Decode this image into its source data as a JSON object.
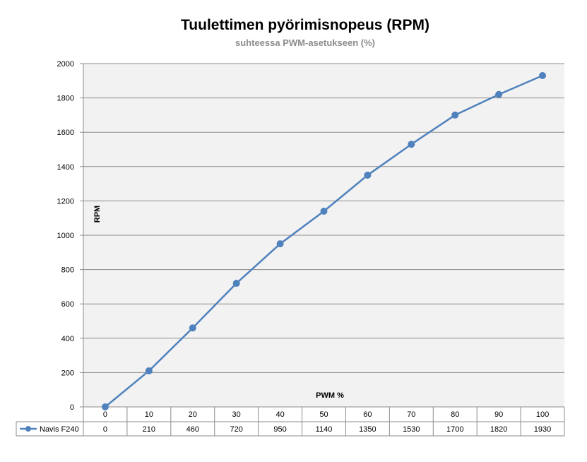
{
  "chart_data": {
    "type": "line",
    "title": "Tuulettimen pyörimisnopeus (RPM)",
    "subtitle": "suhteessa PWM-asetukseen (%)",
    "xlabel": "PWM %",
    "ylabel": "RPM",
    "categories": [
      "0",
      "10",
      "20",
      "30",
      "40",
      "50",
      "60",
      "70",
      "80",
      "90",
      "100"
    ],
    "series": [
      {
        "name": "Navis F240",
        "values": [
          0,
          210,
          460,
          720,
          950,
          1140,
          1350,
          1530,
          1700,
          1820,
          1930
        ]
      }
    ],
    "ylim": [
      0,
      2000
    ],
    "yticks": [
      "0",
      "200",
      "400",
      "600",
      "800",
      "1000",
      "1200",
      "1400",
      "1600",
      "1800",
      "2000"
    ],
    "grid": true,
    "legend": "data-table-left",
    "colors": {
      "series": "#4f81bd",
      "plot_bg": "#f2f2f2",
      "grid": "#8c8c8c",
      "subtitle": "#8c8c8c"
    }
  }
}
